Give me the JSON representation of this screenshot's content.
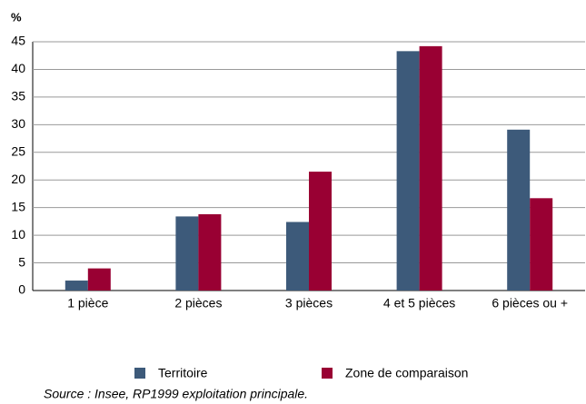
{
  "chart_data": {
    "type": "bar",
    "y_label": "%",
    "categories": [
      "1 pièce",
      "2 pièces",
      "3 pièces",
      "4 et 5 pièces",
      "6 pièces ou +"
    ],
    "series": [
      {
        "name": "Territoire",
        "color": "#3d5a7a",
        "values": [
          1.8,
          13.4,
          12.4,
          43.3,
          29.1
        ]
      },
      {
        "name": "Zone de comparaison",
        "color": "#990033",
        "values": [
          4.0,
          13.8,
          21.5,
          44.2,
          16.7
        ]
      }
    ],
    "ylim": [
      0,
      45
    ],
    "yticks": [
      0,
      5,
      10,
      15,
      20,
      25,
      30,
      35,
      40,
      45
    ],
    "grid": true,
    "source": "Source : Insee, RP1999 exploitation principale."
  }
}
